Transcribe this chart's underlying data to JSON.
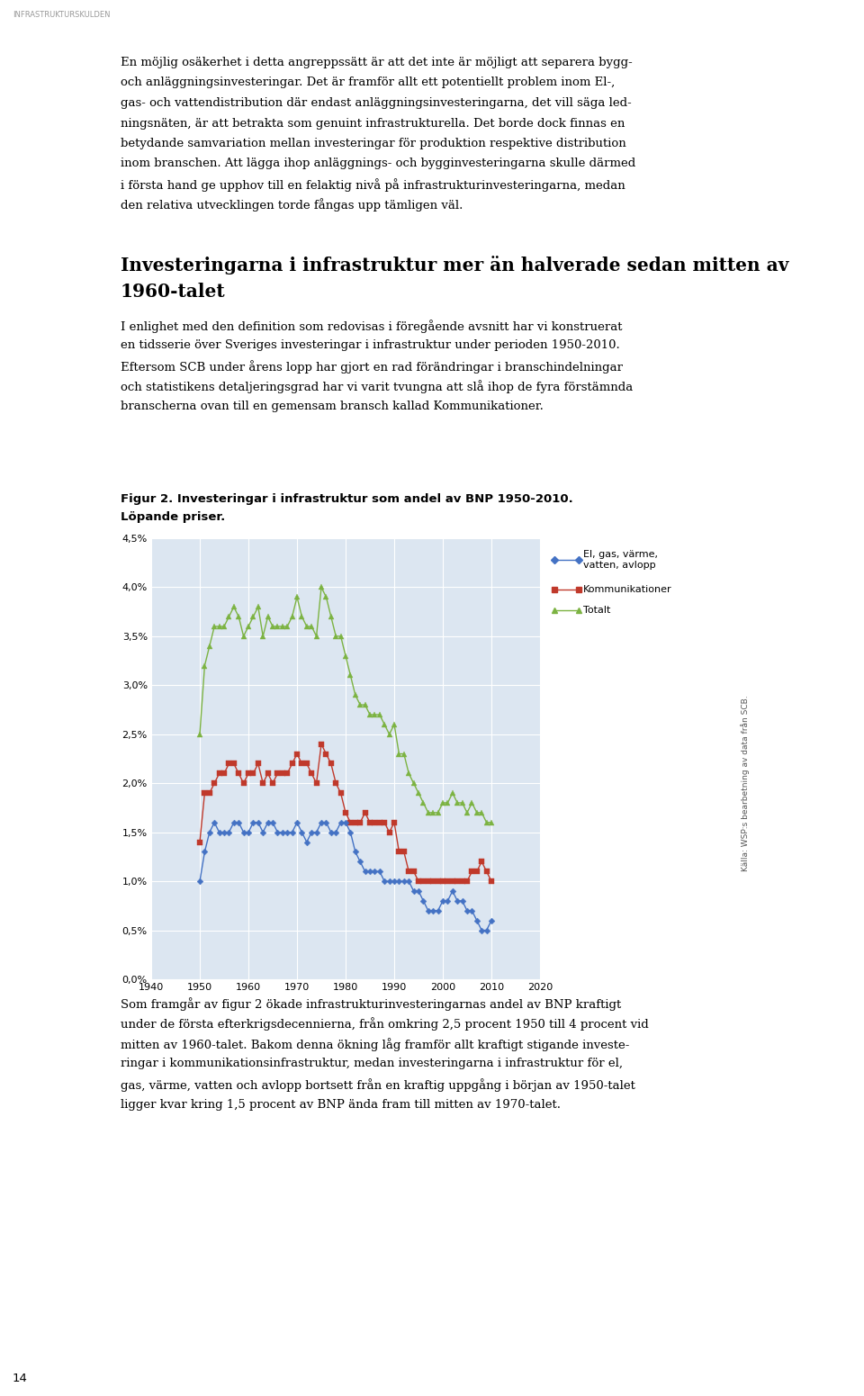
{
  "title_line1": "Figur 2. Investeringar i infrastruktur som andel av BNP 1950-2010.",
  "title_line2": "Löpande priser.",
  "legend_el_gas": "El, gas, värme,\nvatten, avlopp",
  "legend_kommunikationer": "Kommunikationer",
  "legend_totalt": "Totalt",
  "color_el_gas": "#4472c4",
  "color_kommunikationer": "#c0392b",
  "color_totalt": "#7cb342",
  "background_color": "#dce6f1",
  "fig_background": "#ffffff",
  "xlim": [
    1940,
    2020
  ],
  "ylim": [
    0.0,
    0.045
  ],
  "yticks": [
    0.0,
    0.005,
    0.01,
    0.015,
    0.02,
    0.025,
    0.03,
    0.035,
    0.04,
    0.045
  ],
  "ytick_labels": [
    "0,0%",
    "0,5%",
    "1,0%",
    "1,5%",
    "2,0%",
    "2,5%",
    "3,0%",
    "3,5%",
    "4,0%",
    "4,5%"
  ],
  "xticks": [
    1940,
    1950,
    1960,
    1970,
    1980,
    1990,
    2000,
    2010,
    2020
  ],
  "years_el_gas": [
    1950,
    1951,
    1952,
    1953,
    1954,
    1955,
    1956,
    1957,
    1958,
    1959,
    1960,
    1961,
    1962,
    1963,
    1964,
    1965,
    1966,
    1967,
    1968,
    1969,
    1970,
    1971,
    1972,
    1973,
    1974,
    1975,
    1976,
    1977,
    1978,
    1979,
    1980,
    1981,
    1982,
    1983,
    1984,
    1985,
    1986,
    1987,
    1988,
    1989,
    1990,
    1991,
    1992,
    1993,
    1994,
    1995,
    1996,
    1997,
    1998,
    1999,
    2000,
    2001,
    2002,
    2003,
    2004,
    2005,
    2006,
    2007,
    2008,
    2009,
    2010
  ],
  "values_el_gas": [
    0.01,
    0.013,
    0.015,
    0.016,
    0.015,
    0.015,
    0.015,
    0.016,
    0.016,
    0.015,
    0.015,
    0.016,
    0.016,
    0.015,
    0.016,
    0.016,
    0.015,
    0.015,
    0.015,
    0.015,
    0.016,
    0.015,
    0.014,
    0.015,
    0.015,
    0.016,
    0.016,
    0.015,
    0.015,
    0.016,
    0.016,
    0.015,
    0.013,
    0.012,
    0.011,
    0.011,
    0.011,
    0.011,
    0.01,
    0.01,
    0.01,
    0.01,
    0.01,
    0.01,
    0.009,
    0.009,
    0.008,
    0.007,
    0.007,
    0.007,
    0.008,
    0.008,
    0.009,
    0.008,
    0.008,
    0.007,
    0.007,
    0.006,
    0.005,
    0.005,
    0.006
  ],
  "years_kommunikationer": [
    1950,
    1951,
    1952,
    1953,
    1954,
    1955,
    1956,
    1957,
    1958,
    1959,
    1960,
    1961,
    1962,
    1963,
    1964,
    1965,
    1966,
    1967,
    1968,
    1969,
    1970,
    1971,
    1972,
    1973,
    1974,
    1975,
    1976,
    1977,
    1978,
    1979,
    1980,
    1981,
    1982,
    1983,
    1984,
    1985,
    1986,
    1987,
    1988,
    1989,
    1990,
    1991,
    1992,
    1993,
    1994,
    1995,
    1996,
    1997,
    1998,
    1999,
    2000,
    2001,
    2002,
    2003,
    2004,
    2005,
    2006,
    2007,
    2008,
    2009,
    2010
  ],
  "values_kommunikationer": [
    0.014,
    0.019,
    0.019,
    0.02,
    0.021,
    0.021,
    0.022,
    0.022,
    0.021,
    0.02,
    0.021,
    0.021,
    0.022,
    0.02,
    0.021,
    0.02,
    0.021,
    0.021,
    0.021,
    0.022,
    0.023,
    0.022,
    0.022,
    0.021,
    0.02,
    0.024,
    0.023,
    0.022,
    0.02,
    0.019,
    0.017,
    0.016,
    0.016,
    0.016,
    0.017,
    0.016,
    0.016,
    0.016,
    0.016,
    0.015,
    0.016,
    0.013,
    0.013,
    0.011,
    0.011,
    0.01,
    0.01,
    0.01,
    0.01,
    0.01,
    0.01,
    0.01,
    0.01,
    0.01,
    0.01,
    0.01,
    0.011,
    0.011,
    0.012,
    0.011,
    0.01
  ],
  "years_totalt": [
    1950,
    1951,
    1952,
    1953,
    1954,
    1955,
    1956,
    1957,
    1958,
    1959,
    1960,
    1961,
    1962,
    1963,
    1964,
    1965,
    1966,
    1967,
    1968,
    1969,
    1970,
    1971,
    1972,
    1973,
    1974,
    1975,
    1976,
    1977,
    1978,
    1979,
    1980,
    1981,
    1982,
    1983,
    1984,
    1985,
    1986,
    1987,
    1988,
    1989,
    1990,
    1991,
    1992,
    1993,
    1994,
    1995,
    1996,
    1997,
    1998,
    1999,
    2000,
    2001,
    2002,
    2003,
    2004,
    2005,
    2006,
    2007,
    2008,
    2009,
    2010
  ],
  "values_totalt": [
    0.025,
    0.032,
    0.034,
    0.036,
    0.036,
    0.036,
    0.037,
    0.038,
    0.037,
    0.035,
    0.036,
    0.037,
    0.038,
    0.035,
    0.037,
    0.036,
    0.036,
    0.036,
    0.036,
    0.037,
    0.039,
    0.037,
    0.036,
    0.036,
    0.035,
    0.04,
    0.039,
    0.037,
    0.035,
    0.035,
    0.033,
    0.031,
    0.029,
    0.028,
    0.028,
    0.027,
    0.027,
    0.027,
    0.026,
    0.025,
    0.026,
    0.023,
    0.023,
    0.021,
    0.02,
    0.019,
    0.018,
    0.017,
    0.017,
    0.017,
    0.018,
    0.018,
    0.019,
    0.018,
    0.018,
    0.017,
    0.018,
    0.017,
    0.017,
    0.016,
    0.016
  ],
  "source_text": "Källa: WSP:s bearbetning av data från SCB.",
  "header_text": "INFRASTRUKTURSKULDEN",
  "page_number": "14",
  "top_text_lines": [
    "En möjlig osäkerhet i detta angreppssätt är att det inte är möjligt att separera bygg-",
    "och anläggningsinvesteringar. Det är framför allt ett potentiellt problem inom El-,",
    "gas- och vattendistribution där endast anläggningsinvesteringarna, det vill säga led-",
    "ningsnäten, är att betrakta som genuint infrastrukturella. Det borde dock finnas en",
    "betydande samvariation mellan investeringar för produktion respektive distribution",
    "inom branschen. Att lägga ihop anläggnings- och bygginvesteringarna skulle därmed",
    "i första hand ge upphov till en felaktig nivå på infrastrukturinvesteringarna, medan",
    "den relativa utvecklingen torde fångas upp tämligen väl."
  ],
  "mid_heading_lines": [
    "Investeringarna i infrastruktur mer än halverade sedan mitten av",
    "1960-talet"
  ],
  "mid_body_lines": [
    "I enlighet med den definition som redovisas i föregående avsnitt har vi konstruerat",
    "en tidsserie över Sveriges investeringar i infrastruktur under perioden 1950-2010.",
    "Eftersom SCB under årens lopp har gjort en rad förändringar i branschindelningar",
    "och statistikens detaljeringsgrad har vi varit tvungna att slå ihop de fyra förstämnda",
    "branscherna ovan till en gemensam bransch kallad Kommunikationer."
  ],
  "bottom_text_lines": [
    "Som framgår av figur 2 ökade infrastrukturinvesteringarnas andel av BNP kraftigt",
    "under de första efterkrigsdecennierna, från omkring 2,5 procent 1950 till 4 procent vid",
    "mitten av 1960-talet. Bakom denna ökning låg framför allt kraftigt stigande investe-",
    "ringar i kommunikationsinfrastruktur, medan investeringarna i infrastruktur för el,",
    "gas, värme, vatten och avlopp bortsett från en kraftig uppgång i början av 1950-talet",
    "ligger kvar kring 1,5 procent av BNP ända fram till mitten av 1970-talet."
  ]
}
